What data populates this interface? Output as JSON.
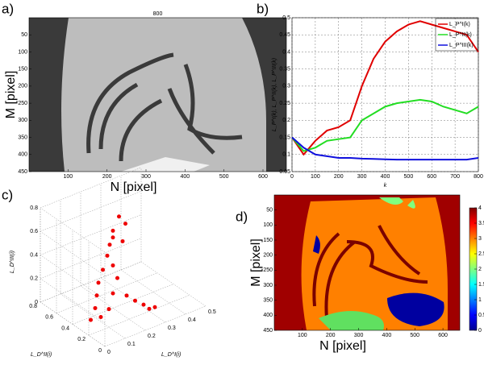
{
  "chart_data": [
    {
      "type": "image",
      "label": "a)",
      "xlabel": "N [pixel]",
      "ylabel": "M [pixel]",
      "top_tick": 800,
      "xlim": [
        0,
        660
      ],
      "ylim": [
        0,
        450
      ],
      "xticks": [
        100,
        200,
        300,
        400,
        500,
        600
      ],
      "yticks": [
        50,
        100,
        150,
        200,
        250,
        300,
        350,
        400,
        450
      ]
    },
    {
      "type": "line",
      "label": "b)",
      "xlabel": "k",
      "ylabel": "L_P^I(k), L_P^II(k), L_P^III(k)",
      "x": [
        0,
        50,
        100,
        150,
        200,
        250,
        300,
        350,
        400,
        450,
        500,
        550,
        600,
        650,
        700,
        750,
        800
      ],
      "xlim": [
        0,
        800
      ],
      "ylim": [
        0.05,
        0.5
      ],
      "xticks": [
        0,
        100,
        200,
        300,
        400,
        500,
        600,
        700,
        800
      ],
      "yticks": [
        0.05,
        0.1,
        0.15,
        0.2,
        0.25,
        0.3,
        0.35,
        0.4,
        0.45,
        0.5
      ],
      "grid": true,
      "legend": "upper right",
      "series": [
        {
          "name": "L_P^I(k)",
          "color": "#e00000",
          "values": [
            0.15,
            0.1,
            0.14,
            0.17,
            0.18,
            0.2,
            0.3,
            0.38,
            0.43,
            0.46,
            0.48,
            0.49,
            0.48,
            0.47,
            0.46,
            0.45,
            0.4
          ]
        },
        {
          "name": "L_P^II(k)",
          "color": "#22dd22",
          "values": [
            0.15,
            0.11,
            0.12,
            0.14,
            0.145,
            0.15,
            0.2,
            0.22,
            0.24,
            0.25,
            0.255,
            0.26,
            0.255,
            0.24,
            0.23,
            0.22,
            0.24
          ]
        },
        {
          "name": "L_P^III(k)",
          "color": "#1010dd",
          "values": [
            0.15,
            0.12,
            0.1,
            0.095,
            0.09,
            0.09,
            0.088,
            0.087,
            0.086,
            0.085,
            0.085,
            0.085,
            0.085,
            0.085,
            0.085,
            0.085,
            0.09
          ]
        }
      ]
    },
    {
      "type": "scatter3d",
      "label": "c)",
      "xlabel": "L_D^I(i)",
      "ylabel": "L_D^II(i)",
      "zlabel": "L_D^III(i)",
      "color": "#ee0000",
      "xlim": [
        0,
        0.5
      ],
      "ylim": [
        0,
        0.8
      ],
      "zlim": [
        0,
        0.8
      ],
      "xticks": [
        0,
        0.1,
        0.2,
        0.3,
        0.4,
        0.5
      ],
      "yticks": [
        0,
        0.2,
        0.4,
        0.6,
        0.8
      ],
      "zticks": [
        0,
        0.2,
        0.4,
        0.6,
        0.8
      ],
      "x": [
        0.05,
        0.08,
        0.1,
        0.12,
        0.15,
        0.18,
        0.2,
        0.22,
        0.25,
        0.2,
        0.18,
        0.16,
        0.22,
        0.25,
        0.28,
        0.3,
        0.32,
        0.1,
        0.14,
        0.19,
        0.24,
        0.27
      ],
      "y": [
        0.3,
        0.32,
        0.35,
        0.38,
        0.4,
        0.42,
        0.44,
        0.45,
        0.45,
        0.4,
        0.35,
        0.3,
        0.28,
        0.25,
        0.22,
        0.2,
        0.18,
        0.3,
        0.3,
        0.32,
        0.38,
        0.42
      ],
      "z": [
        0.05,
        0.12,
        0.2,
        0.28,
        0.36,
        0.45,
        0.52,
        0.62,
        0.72,
        0.6,
        0.4,
        0.2,
        0.15,
        0.1,
        0.06,
        0.02,
        0.03,
        0.04,
        0.08,
        0.3,
        0.55,
        0.66
      ]
    },
    {
      "type": "image",
      "label": "d)",
      "xlabel": "N [pixel]",
      "ylabel": "M [pixel]",
      "xlim": [
        0,
        660
      ],
      "ylim": [
        0,
        450
      ],
      "xticks": [
        100,
        200,
        300,
        400,
        500,
        600
      ],
      "yticks": [
        50,
        100,
        150,
        200,
        250,
        300,
        350,
        400,
        450
      ],
      "colorbar": {
        "lim": [
          0,
          4
        ],
        "ticks": [
          0,
          0.5,
          1,
          1.5,
          2,
          2.5,
          3,
          3.5,
          4
        ]
      }
    }
  ]
}
